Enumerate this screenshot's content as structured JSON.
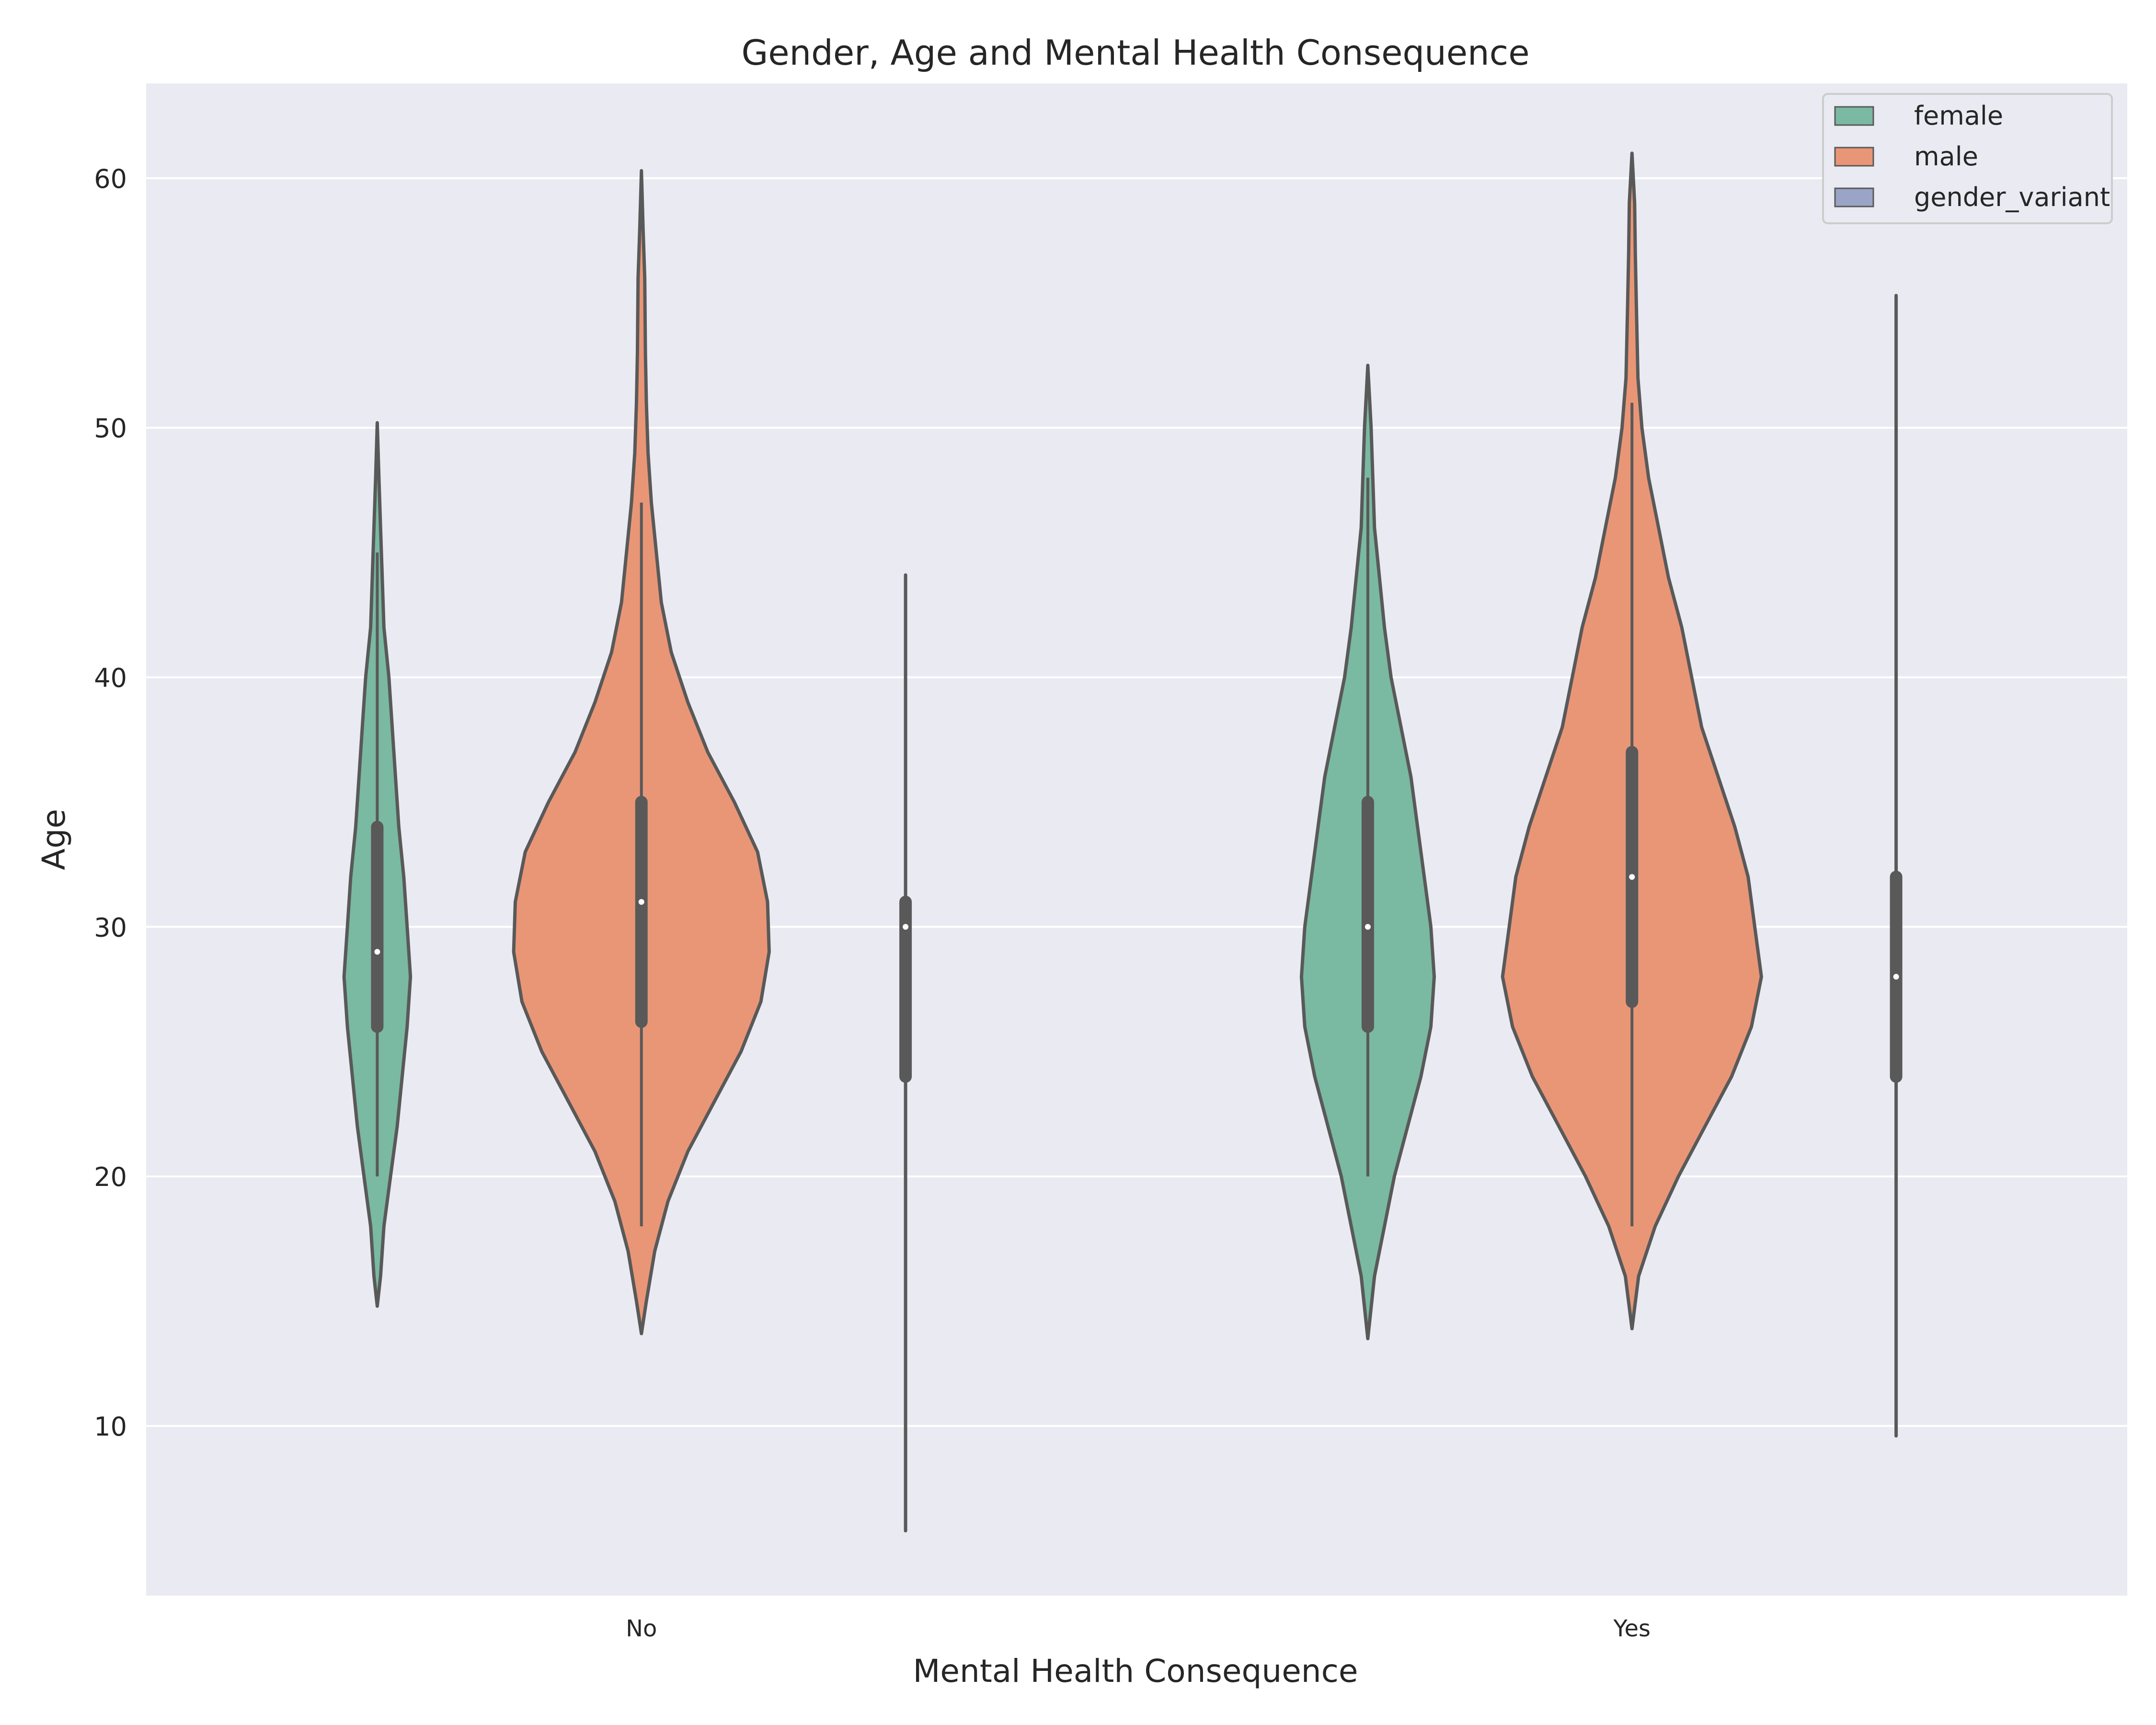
{
  "chart_data": {
    "type": "violin",
    "title": "Gender, Age and Mental Health Consequence",
    "xlabel": "Mental Health Consequence",
    "ylabel": "Age",
    "categories": [
      "No",
      "Yes"
    ],
    "ylim": [
      3.2,
      63.8
    ],
    "yticks": [
      10,
      20,
      30,
      40,
      50,
      60
    ],
    "grid": true,
    "legend_position": "top-right",
    "colors": {
      "female": "#7ab9a2",
      "male": "#e99677",
      "gender_variant": "#99a4c6",
      "outline": "#595959",
      "background": "#eaeaf2"
    },
    "series": [
      {
        "name": "female",
        "groups": [
          {
            "category": "No",
            "min": 20,
            "q1": 26,
            "median": 29,
            "q3": 34,
            "max": 45,
            "kde": [
              [
                14.8,
                0
              ],
              [
                16,
                1
              ],
              [
                18,
                2
              ],
              [
                20,
                4
              ],
              [
                22,
                6
              ],
              [
                24,
                7.5
              ],
              [
                26,
                9
              ],
              [
                28,
                10
              ],
              [
                30,
                9
              ],
              [
                32,
                8
              ],
              [
                34,
                6.5
              ],
              [
                36,
                5.5
              ],
              [
                38,
                4.5
              ],
              [
                40,
                3.5
              ],
              [
                42,
                2
              ],
              [
                44,
                1.5
              ],
              [
                46,
                1
              ],
              [
                48,
                0.5
              ],
              [
                50.2,
                0
              ]
            ]
          },
          {
            "category": "Yes",
            "min": 20,
            "q1": 26,
            "median": 30,
            "q3": 35,
            "max": 48,
            "kde": [
              [
                13.5,
                0
              ],
              [
                16,
                2
              ],
              [
                18,
                5
              ],
              [
                20,
                8
              ],
              [
                22,
                12
              ],
              [
                24,
                16
              ],
              [
                26,
                19
              ],
              [
                28,
                20
              ],
              [
                30,
                19
              ],
              [
                32,
                17
              ],
              [
                34,
                15
              ],
              [
                36,
                13
              ],
              [
                38,
                10
              ],
              [
                40,
                7
              ],
              [
                42,
                5
              ],
              [
                44,
                3.5
              ],
              [
                46,
                2
              ],
              [
                48,
                1.5
              ],
              [
                50,
                1
              ],
              [
                52.5,
                0
              ]
            ]
          }
        ]
      },
      {
        "name": "male",
        "groups": [
          {
            "category": "No",
            "min": 18,
            "q1": 26.2,
            "median": 31,
            "q3": 35,
            "max": 47,
            "kde": [
              [
                13.7,
                0
              ],
              [
                15,
                1.5
              ],
              [
                17,
                4
              ],
              [
                19,
                8
              ],
              [
                21,
                14
              ],
              [
                23,
                22
              ],
              [
                25,
                30
              ],
              [
                27,
                36
              ],
              [
                29,
                38.5
              ],
              [
                31,
                38
              ],
              [
                33,
                35
              ],
              [
                35,
                28
              ],
              [
                37,
                20
              ],
              [
                39,
                14
              ],
              [
                41,
                9
              ],
              [
                43,
                6
              ],
              [
                45,
                4.5
              ],
              [
                47,
                3
              ],
              [
                49,
                2
              ],
              [
                51,
                1.5
              ],
              [
                53,
                1.2
              ],
              [
                56,
                1
              ],
              [
                58,
                0.5
              ],
              [
                60.3,
                0
              ]
            ]
          },
          {
            "category": "Yes",
            "min": 18,
            "q1": 27,
            "median": 32,
            "q3": 37,
            "max": 51,
            "kde": [
              [
                13.9,
                0
              ],
              [
                16,
                2
              ],
              [
                18,
                7
              ],
              [
                20,
                14
              ],
              [
                22,
                22
              ],
              [
                24,
                30
              ],
              [
                26,
                36
              ],
              [
                28,
                39
              ],
              [
                30,
                37
              ],
              [
                32,
                35
              ],
              [
                34,
                31
              ],
              [
                36,
                26
              ],
              [
                38,
                21
              ],
              [
                40,
                18
              ],
              [
                42,
                15
              ],
              [
                44,
                11
              ],
              [
                46,
                8
              ],
              [
                48,
                5
              ],
              [
                50,
                3
              ],
              [
                52,
                1.8
              ],
              [
                55,
                1.3
              ],
              [
                57,
                1
              ],
              [
                59,
                0.8
              ],
              [
                61,
                0
              ]
            ]
          }
        ]
      },
      {
        "name": "gender_variant",
        "groups": [
          {
            "category": "No",
            "min": 5.8,
            "q1": 24,
            "median": 30,
            "q3": 31,
            "max": 44.1,
            "kde": [
              [
                5.8,
                0
              ],
              [
                44.1,
                0
              ]
            ]
          },
          {
            "category": "Yes",
            "min": 9.6,
            "q1": 24,
            "median": 28,
            "q3": 32,
            "max": 55.3,
            "kde": [
              [
                9.6,
                0
              ],
              [
                55.3,
                0
              ]
            ]
          }
        ]
      }
    ]
  }
}
